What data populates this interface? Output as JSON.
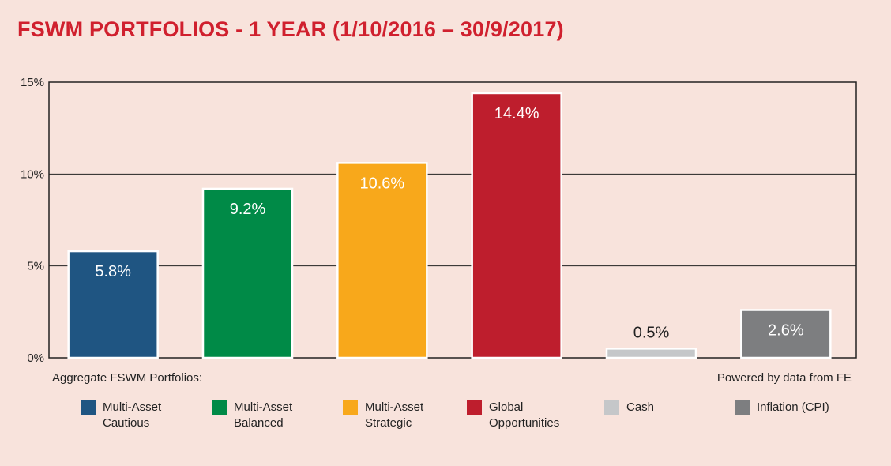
{
  "title": "FSWM PORTFOLIOS - 1 YEAR (1/10/2016 – 30/9/2017)",
  "aggregate_label": "Aggregate FSWM Portfolios:",
  "source_note": "Powered by data from FE",
  "chart_data": {
    "type": "bar",
    "title": "FSWM PORTFOLIOS - 1 YEAR (1/10/2016 – 30/9/2017)",
    "categories": [
      "Multi-Asset Cautious",
      "Multi-Asset Balanced",
      "Multi-Asset Strategic",
      "Global Opportunities",
      "Cash",
      "Inflation (CPI)"
    ],
    "values": [
      5.8,
      9.2,
      10.6,
      14.4,
      0.5,
      2.6
    ],
    "value_labels": [
      "5.8%",
      "9.2%",
      "10.6%",
      "14.4%",
      "0.5%",
      "2.6%"
    ],
    "colors": [
      "#1f5582",
      "#008a47",
      "#f8a81b",
      "#be1e2d",
      "#c5c7c9",
      "#7d7e80"
    ],
    "ylim": [
      0,
      15
    ],
    "yticks": [
      0,
      5,
      10,
      15
    ],
    "ytick_labels": [
      "0%",
      "5%",
      "10%",
      "15%"
    ],
    "grid": true,
    "legend_position": "bottom",
    "legend": [
      {
        "line1": "Multi-Asset",
        "line2": "Cautious"
      },
      {
        "line1": "Multi-Asset",
        "line2": "Balanced"
      },
      {
        "line1": "Multi-Asset",
        "line2": "Strategic"
      },
      {
        "line1": "Global",
        "line2": "Opportunities"
      },
      {
        "line1": "Cash",
        "line2": ""
      },
      {
        "line1": "Inflation (CPI)",
        "line2": ""
      }
    ]
  }
}
